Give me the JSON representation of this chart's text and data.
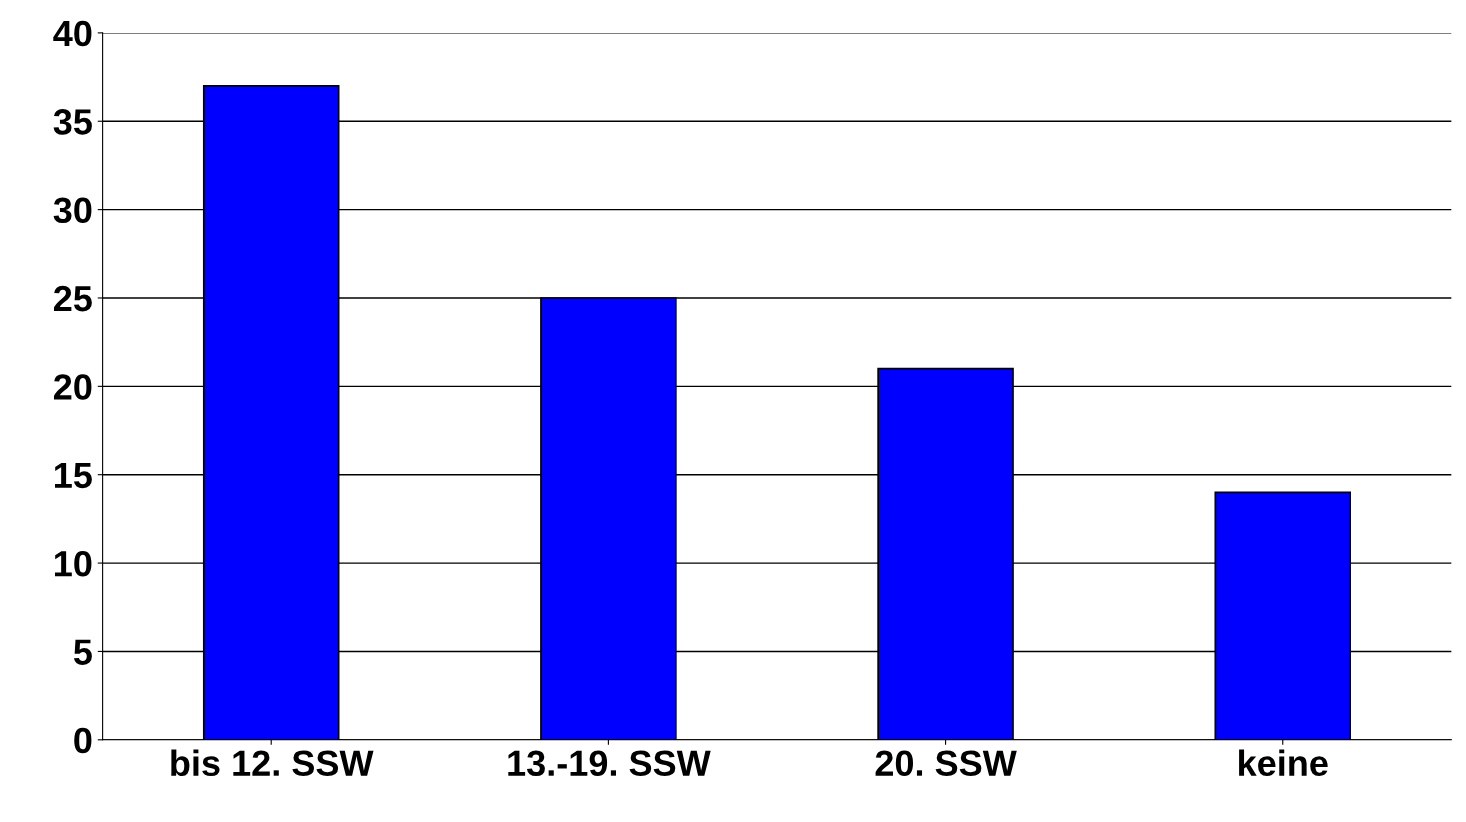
{
  "chart_data": {
    "type": "bar",
    "categories": [
      "bis 12. SSW",
      "13.-19. SSW",
      "20. SSW",
      "keine"
    ],
    "values": [
      37,
      25,
      21,
      14
    ],
    "color": "#0000ff",
    "ylim": [
      0,
      40
    ],
    "yticks": [
      0,
      5,
      10,
      15,
      20,
      25,
      30,
      35,
      40
    ],
    "grid": "y"
  }
}
